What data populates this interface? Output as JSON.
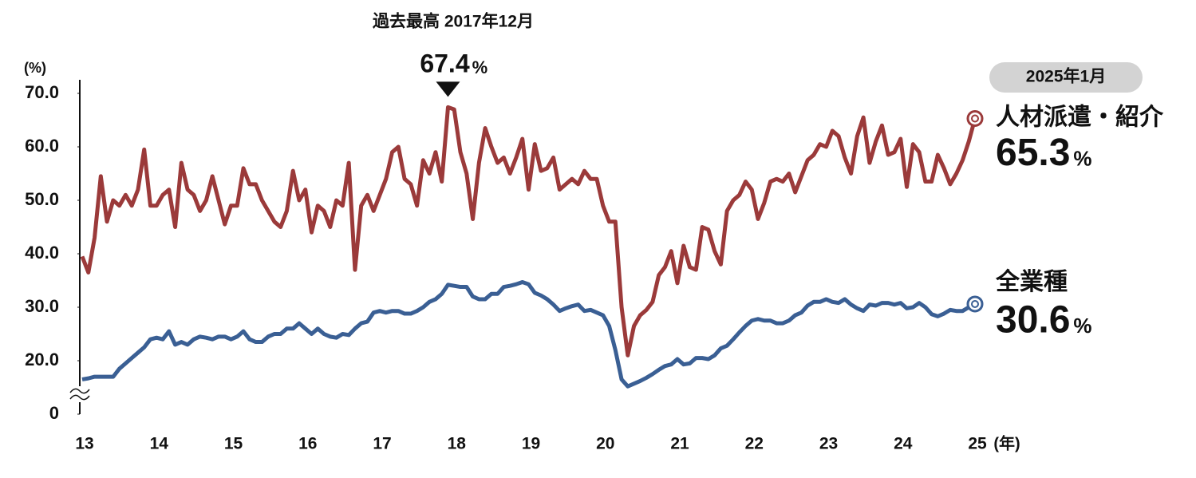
{
  "chart_data": {
    "type": "line",
    "title": "過去最高 2017年12月",
    "badge": "2025年1月",
    "unit": "%",
    "x_label": "(年)",
    "y_label": "(%)",
    "ylim": [
      0,
      70
    ],
    "axis_break": [
      0,
      10
    ],
    "yticks": [
      0,
      {
        "value": 20,
        "label": "20.0"
      },
      {
        "value": 30,
        "label": "30.0"
      },
      {
        "value": 40,
        "label": "40.0"
      },
      {
        "value": 50,
        "label": "50.0"
      },
      {
        "value": 60,
        "label": "60.0"
      },
      {
        "value": 70,
        "label": "70.0"
      }
    ],
    "categories": [
      "13",
      null,
      null,
      null,
      null,
      null,
      null,
      null,
      null,
      null,
      null,
      null,
      "14",
      null,
      null,
      null,
      null,
      null,
      null,
      null,
      null,
      null,
      null,
      null,
      "15",
      null,
      null,
      null,
      null,
      null,
      null,
      null,
      null,
      null,
      null,
      null,
      "16",
      null,
      null,
      null,
      null,
      null,
      null,
      null,
      null,
      null,
      null,
      null,
      "17",
      null,
      null,
      null,
      null,
      null,
      null,
      null,
      null,
      null,
      null,
      null,
      "18",
      null,
      null,
      null,
      null,
      null,
      null,
      null,
      null,
      null,
      null,
      null,
      "19",
      null,
      null,
      null,
      null,
      null,
      null,
      null,
      null,
      null,
      null,
      null,
      "20",
      null,
      null,
      null,
      null,
      null,
      null,
      null,
      null,
      null,
      null,
      null,
      "21",
      null,
      null,
      null,
      null,
      null,
      null,
      null,
      null,
      null,
      null,
      null,
      "22",
      null,
      null,
      null,
      null,
      null,
      null,
      null,
      null,
      null,
      null,
      null,
      "23",
      null,
      null,
      null,
      null,
      null,
      null,
      null,
      null,
      null,
      null,
      null,
      "24",
      null,
      null,
      null,
      null,
      null,
      null,
      null,
      null,
      null,
      null,
      null,
      "25"
    ],
    "series": [
      {
        "name": "人材派遣・紹介",
        "color": "#9b3a3a",
        "values": [
          39.5,
          36.5,
          43,
          54.5,
          46,
          50,
          49,
          51,
          49,
          52,
          59.5,
          49,
          49,
          51,
          52,
          45,
          57,
          52,
          51,
          48,
          50,
          54.5,
          50,
          45.5,
          49,
          49,
          56,
          53,
          53,
          50,
          48,
          46,
          45,
          48,
          55.5,
          50,
          52,
          44,
          49,
          48,
          45,
          50,
          49,
          57,
          37,
          49,
          51,
          48,
          51,
          54,
          59,
          60,
          54,
          53,
          49,
          57.5,
          55,
          59,
          53.5,
          67.4,
          67,
          59,
          55,
          46.5,
          57,
          63.5,
          60,
          57,
          58,
          55,
          58,
          61.5,
          52,
          60.5,
          55.5,
          56,
          58,
          52,
          53,
          54,
          53,
          55.5,
          54,
          54,
          49,
          46,
          46,
          30,
          21,
          26.5,
          28.5,
          29.5,
          31,
          36,
          37.5,
          40.5,
          34.5,
          41.5,
          37.5,
          37,
          45,
          44.5,
          40.5,
          38,
          48,
          50,
          51,
          53.5,
          52,
          46.5,
          49.5,
          53.5,
          54,
          53.5,
          55,
          51.5,
          54.5,
          57.5,
          58.5,
          60.5,
          60,
          63,
          62,
          58,
          55,
          62,
          65.5,
          57,
          61,
          64,
          58.5,
          59,
          61.5,
          52.5,
          60.5,
          59,
          53.5,
          53.5,
          58.5,
          56,
          53,
          55,
          57.5,
          61,
          65.3
        ]
      },
      {
        "name": "全業種",
        "color": "#3a5f94",
        "values": [
          16.5,
          16.7,
          17,
          17,
          17,
          17,
          18.5,
          19.5,
          20.5,
          21.5,
          22.5,
          24,
          24.3,
          24,
          25.5,
          23,
          23.5,
          23,
          24,
          24.5,
          24.3,
          24,
          24.5,
          24.5,
          24,
          24.5,
          25.5,
          24,
          23.5,
          23.5,
          24.5,
          25,
          25,
          26,
          26,
          27,
          26,
          25,
          26,
          25,
          24.5,
          24.3,
          25,
          24.8,
          26,
          27,
          27.3,
          29,
          29.3,
          29,
          29.3,
          29.3,
          28.8,
          28.8,
          29.3,
          30,
          31,
          31.5,
          32.5,
          34.2,
          34,
          33.8,
          33.8,
          32,
          31.5,
          31.5,
          32.5,
          32.5,
          33.8,
          34,
          34.3,
          34.7,
          34.3,
          32.7,
          32.2,
          31.5,
          30.5,
          29.3,
          29.8,
          30.2,
          30.5,
          29.3,
          29.5,
          29,
          28.5,
          26.5,
          22,
          16.5,
          15.2,
          15.7,
          16.2,
          16.8,
          17.5,
          18.3,
          19,
          19.3,
          20.3,
          19.3,
          19.5,
          20.5,
          20.5,
          20.3,
          21,
          22.3,
          22.8,
          24,
          25.3,
          26.5,
          27.5,
          27.8,
          27.5,
          27.5,
          27,
          27,
          27.5,
          28.5,
          29,
          30.3,
          31,
          31,
          31.5,
          31,
          30.8,
          31.5,
          30.5,
          29.8,
          29.3,
          30.5,
          30.3,
          30.8,
          30.8,
          30.5,
          30.8,
          29.8,
          30,
          30.8,
          30,
          28.7,
          28.3,
          28.8,
          29.5,
          29.3,
          29.3,
          30,
          30.6
        ]
      }
    ]
  }
}
